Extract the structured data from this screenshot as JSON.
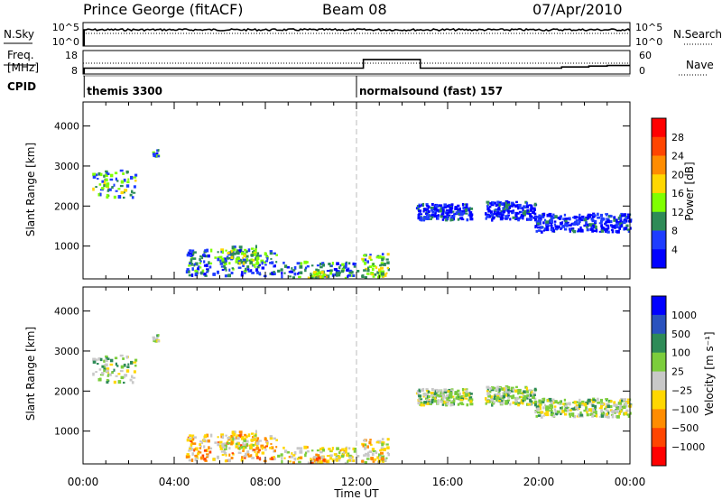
{
  "chart_data": {
    "type": "heatmap",
    "header": {
      "station": "Prince George (fitACF)",
      "beam": "Beam 08",
      "date": "07/Apr/2010"
    },
    "noise_panel": {
      "left_label": "N.Sky",
      "right_label": "N.Search",
      "left_ticks": [
        "10^5",
        "10^0"
      ],
      "right_ticks": [
        "10^5",
        "10^0"
      ]
    },
    "freq_panel": {
      "left_label_1": "Freq.",
      "left_label_2": "[MHz]",
      "right_label": "Nave",
      "left_ticks": [
        18,
        8
      ],
      "right_ticks": [
        60,
        0
      ],
      "freq_steps": [
        [
          0.05,
          10.5
        ],
        [
          12.3,
          14.2
        ],
        [
          14.8,
          10.5
        ],
        [
          21.0,
          11.0
        ],
        [
          22.2,
          11.4
        ],
        [
          23.0,
          11.6
        ],
        [
          24.0,
          11.6
        ]
      ]
    },
    "cpid_panel": {
      "label": "CPID",
      "segments": [
        {
          "start_hour": 0.05,
          "text": "themis 3300"
        },
        {
          "start_hour": 12.0,
          "text": "normalsound (fast) 157"
        }
      ]
    },
    "x_axis": {
      "label": "Time UT",
      "range_hours": [
        0,
        24
      ],
      "ticks": [
        0,
        4,
        8,
        12,
        16,
        20,
        24
      ],
      "tick_labels": [
        "00:00",
        "04:00",
        "08:00",
        "12:00",
        "16:00",
        "20:00",
        "00:00"
      ]
    },
    "y_axis": {
      "label": "Slant Range [km]",
      "range_km": [
        180,
        4600
      ],
      "ticks": [
        1000,
        2000,
        3000,
        4000
      ]
    },
    "power_panel": {
      "colorbar_label": "Power [dB]",
      "colorbar_ticks": [
        "28",
        "24",
        "20",
        "16",
        "12",
        "8",
        "4"
      ],
      "colorbar_colors": [
        "#ff0000",
        "#ff4500",
        "#ff8c00",
        "#ffd700",
        "#7fff00",
        "#2e8b57",
        "#1e3cff",
        "#0000ff"
      ]
    },
    "velocity_panel": {
      "colorbar_label": "Velocity [m s⁻¹]",
      "colorbar_ticks": [
        "1000",
        "500",
        "100",
        "25",
        "−25",
        "−100",
        "−500",
        "−1000"
      ],
      "colorbar_colors": [
        "#0000ff",
        "#2a52be",
        "#2e8b57",
        "#7ccd3c",
        "#c8c8c8",
        "#ffd700",
        "#ff8c00",
        "#ff4500",
        "#ff0000"
      ]
    },
    "echo_regions": [
      {
        "h0": 0.4,
        "h1": 2.3,
        "r0": 2200,
        "r1": 2900,
        "n": 70,
        "pw": 3,
        "vel": 4
      },
      {
        "h0": 3.0,
        "h1": 3.3,
        "r0": 3200,
        "r1": 3400,
        "n": 10,
        "pw": 2,
        "vel": 4
      },
      {
        "h0": 4.5,
        "h1": 8.5,
        "r0": 250,
        "r1": 900,
        "n": 170,
        "pw": 2,
        "vel": 6
      },
      {
        "h0": 6.0,
        "h1": 7.6,
        "r0": 550,
        "r1": 1000,
        "n": 60,
        "pw": 3,
        "vel": 5
      },
      {
        "h0": 8.5,
        "h1": 12.0,
        "r0": 200,
        "r1": 600,
        "n": 90,
        "pw": 2,
        "vel": 5
      },
      {
        "h0": 9.8,
        "h1": 10.9,
        "r0": 200,
        "r1": 350,
        "n": 25,
        "pw": 4,
        "vel": 6
      },
      {
        "h0": 12.2,
        "h1": 13.4,
        "r0": 200,
        "r1": 800,
        "n": 60,
        "pw": 3,
        "vel": 5
      },
      {
        "h0": 14.6,
        "h1": 17.0,
        "r0": 1650,
        "r1": 2050,
        "n": 180,
        "pw": 1,
        "vel": 4
      },
      {
        "h0": 17.6,
        "h1": 19.8,
        "r0": 1650,
        "r1": 2100,
        "n": 150,
        "pw": 1,
        "vel": 4
      },
      {
        "h0": 19.8,
        "h1": 24.0,
        "r0": 1350,
        "r1": 1800,
        "n": 260,
        "pw": 1,
        "vel": 4
      }
    ]
  }
}
